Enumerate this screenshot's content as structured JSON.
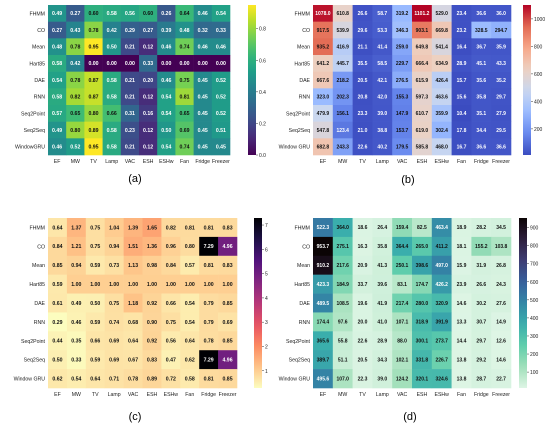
{
  "chart_data": [
    {
      "type": "heatmap",
      "panel_label": "(a)",
      "colormap": "viridis",
      "rows": [
        "FHMM",
        "CO",
        "Mean",
        "Hart85",
        "DAE",
        "RNN",
        "Seq2Point",
        "Seq2Seq",
        "WindowGRU"
      ],
      "columns": [
        "EF",
        "MW",
        "TV",
        "Lamp",
        "VAC",
        "ESH",
        "ESHw",
        "Fan",
        "Fridge",
        "Freezer"
      ],
      "values": [
        [
          0.49,
          0.27,
          0.6,
          0.58,
          0.56,
          0.6,
          0.26,
          0.64,
          0.46,
          0.54
        ],
        [
          0.27,
          0.43,
          0.78,
          0.42,
          0.29,
          0.27,
          0.39,
          0.48,
          0.32,
          0.33
        ],
        [
          0.48,
          0.78,
          0.95,
          0.5,
          0.21,
          0.12,
          0.46,
          0.74,
          0.46,
          0.46
        ],
        [
          0.58,
          0.42,
          0.0,
          0.0,
          0.0,
          0.33,
          0.0,
          0.0,
          0.0,
          0.0
        ],
        [
          0.54,
          0.78,
          0.87,
          0.58,
          0.21,
          0.2,
          0.46,
          0.75,
          0.45,
          0.52
        ],
        [
          0.58,
          0.82,
          0.87,
          0.58,
          0.21,
          0.12,
          0.54,
          0.81,
          0.45,
          0.52
        ],
        [
          0.57,
          0.65,
          0.8,
          0.66,
          0.31,
          0.16,
          0.54,
          0.65,
          0.45,
          0.52
        ],
        [
          0.49,
          0.8,
          0.89,
          0.58,
          0.23,
          0.12,
          0.5,
          0.69,
          0.45,
          0.51
        ],
        [
          0.46,
          0.52,
          0.95,
          0.58,
          0.21,
          0.12,
          0.54,
          0.74,
          0.45,
          0.45
        ]
      ],
      "colorbar_ticks": [
        0.0,
        0.2,
        0.4,
        0.6,
        0.8
      ],
      "range": [
        0.0,
        0.95
      ]
    },
    {
      "type": "heatmap",
      "panel_label": "(b)",
      "colormap": "coolwarm",
      "rows": [
        "FHMM",
        "CO",
        "Mean",
        "Hart85",
        "DAE",
        "RNN",
        "Seq2Point",
        "Seq2Seq",
        "Window GRU"
      ],
      "columns": [
        "EF",
        "MW",
        "TV",
        "Lamp",
        "VAC",
        "ESH",
        "ESHw",
        "Fan",
        "Fridge",
        "Freezer"
      ],
      "values": [
        [
          1078.0,
          610.8,
          26.6,
          58.7,
          319.2,
          1101.2,
          529.0,
          23.4,
          36.6,
          36.0
        ],
        [
          917.5,
          539.9,
          29.6,
          53.3,
          346.3,
          903.1,
          669.8,
          23.2,
          328.5,
          294.7
        ],
        [
          935.2,
          416.9,
          21.1,
          41.4,
          259.0,
          649.8,
          541.4,
          16.4,
          36.7,
          35.9
        ],
        [
          641.2,
          445.7,
          35.5,
          58.5,
          229.7,
          666.4,
          634.9,
          28.9,
          45.1,
          43.3
        ],
        [
          667.6,
          218.2,
          20.5,
          42.1,
          276.5,
          615.9,
          426.4,
          15.7,
          35.6,
          35.2
        ],
        [
          323.0,
          202.3,
          20.8,
          42.0,
          155.3,
          597.3,
          463.6,
          15.6,
          35.8,
          29.7
        ],
        [
          479.9,
          156.1,
          23.3,
          39.0,
          147.9,
          610.7,
          359.9,
          10.4,
          35.1,
          27.9
        ],
        [
          547.8,
          123.4,
          21.0,
          38.8,
          153.7,
          619.0,
          302.4,
          17.8,
          34.4,
          29.5
        ],
        [
          682.8,
          243.3,
          22.6,
          40.2,
          179.5,
          585.8,
          468.0,
          16.7,
          36.6,
          36.6
        ]
      ],
      "colorbar_ticks": [
        200,
        400,
        600,
        800,
        1000
      ],
      "range": [
        10,
        1101
      ]
    },
    {
      "type": "heatmap",
      "panel_label": "(c)",
      "colormap": "magma_r",
      "rows": [
        "FHMM",
        "CO",
        "Mean",
        "Hart85",
        "DAE",
        "RNN",
        "Seq2Point",
        "Seq2Seq",
        "Window GRU"
      ],
      "columns": [
        "EF",
        "MW",
        "TV",
        "Lamp",
        "VAC",
        "ESH",
        "ESHw",
        "Fan",
        "Fridge",
        "Freezer"
      ],
      "values": [
        [
          0.64,
          1.37,
          0.75,
          1.04,
          1.39,
          1.65,
          0.82,
          0.81,
          0.81,
          0.83
        ],
        [
          0.84,
          1.21,
          0.75,
          0.94,
          1.51,
          1.36,
          0.96,
          0.8,
          7.29,
          4.96
        ],
        [
          0.85,
          0.94,
          0.59,
          0.73,
          1.13,
          0.98,
          0.84,
          0.57,
          0.81,
          0.83
        ],
        [
          0.59,
          1.0,
          1.0,
          1.0,
          1.0,
          1.0,
          1.0,
          1.0,
          1.0,
          1.0
        ],
        [
          0.61,
          0.49,
          0.5,
          0.75,
          1.18,
          0.92,
          0.66,
          0.54,
          0.79,
          0.85
        ],
        [
          0.29,
          0.46,
          0.59,
          0.74,
          0.68,
          0.9,
          0.75,
          0.54,
          0.79,
          0.69
        ],
        [
          0.44,
          0.35,
          0.66,
          0.69,
          0.64,
          0.92,
          0.56,
          0.64,
          0.78,
          0.85
        ],
        [
          0.5,
          0.33,
          0.59,
          0.69,
          0.67,
          0.83,
          0.47,
          0.62,
          7.29,
          4.96
        ],
        [
          0.62,
          0.54,
          0.64,
          0.71,
          0.78,
          0.89,
          0.72,
          0.58,
          0.81,
          0.85
        ]
      ],
      "colorbar_ticks": [
        1,
        2,
        3,
        4,
        5,
        6,
        7
      ],
      "range": [
        0.29,
        7.29
      ]
    },
    {
      "type": "heatmap",
      "panel_label": "(d)",
      "colormap": "mako_r",
      "rows": [
        "FHMM",
        "CO",
        "Mean",
        "Hart85",
        "DAE",
        "RNN",
        "Seq2Point",
        "Seq2Seq",
        "Window GRU"
      ],
      "columns": [
        "EF",
        "MW",
        "TV",
        "Lamp",
        "VAC",
        "ESH",
        "ESHw",
        "Fan",
        "Fridge",
        "Freezer"
      ],
      "values": [
        [
          522.3,
          364.0,
          18.6,
          26.4,
          159.4,
          82.5,
          463.4,
          18.9,
          28.2,
          34.5
        ],
        [
          953.7,
          275.1,
          16.3,
          35.8,
          364.4,
          265.0,
          411.2,
          18.1,
          155.2,
          103.8
        ],
        [
          910.2,
          217.6,
          20.9,
          41.3,
          250.1,
          398.6,
          497.0,
          15.9,
          31.9,
          26.8
        ],
        [
          423.3,
          184.9,
          33.7,
          39.6,
          83.1,
          174.7,
          426.2,
          23.9,
          26.6,
          24.3
        ],
        [
          489.5,
          108.5,
          19.6,
          41.9,
          217.4,
          280.0,
          320.9,
          14.6,
          30.2,
          27.6
        ],
        [
          174.4,
          97.6,
          20.0,
          41.0,
          107.1,
          318.9,
          391.9,
          13.3,
          30.7,
          14.9
        ],
        [
          365.6,
          55.8,
          22.6,
          28.9,
          88.0,
          300.1,
          273.7,
          14.4,
          29.7,
          12.6
        ],
        [
          389.7,
          51.1,
          20.5,
          34.3,
          102.1,
          331.8,
          226.7,
          13.8,
          29.2,
          14.6
        ],
        [
          495.6,
          107.0,
          22.3,
          39.0,
          124.2,
          320.1,
          324.6,
          13.8,
          28.7,
          22.7
        ]
      ],
      "colorbar_ticks": [
        100,
        200,
        300,
        400,
        500,
        600,
        700,
        800,
        900
      ],
      "range": [
        12,
        953
      ]
    }
  ]
}
